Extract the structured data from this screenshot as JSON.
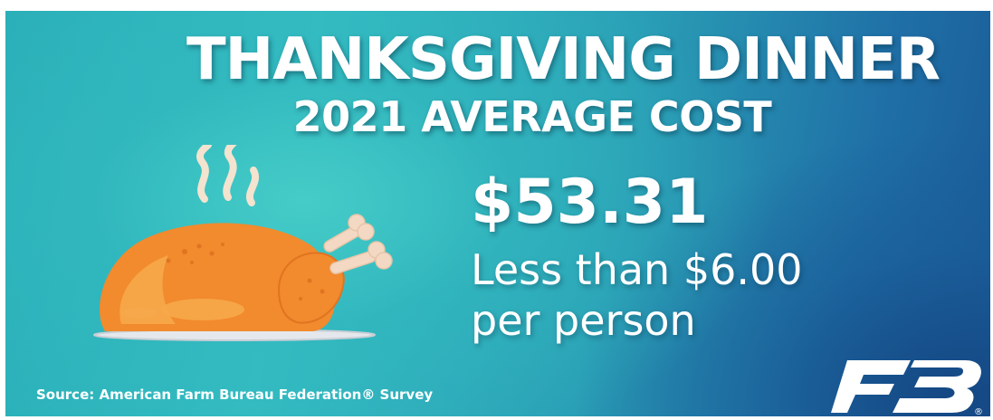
{
  "headline": {
    "line1": "THANKSGIVING DINNER",
    "line2": "2021 AVERAGE COST"
  },
  "cost": {
    "total": "$53.31",
    "per_person_line1": "Less than $6.00",
    "per_person_line2": "per person"
  },
  "source_text": "Source: American Farm Bureau Federation® Survey",
  "logo": {
    "name": "farm-bureau-logo",
    "mark": "FB",
    "registered": "®"
  },
  "illustration": {
    "icon": "roast-turkey-icon"
  },
  "colors": {
    "background_teal": "#33bcc2",
    "background_blue": "#1a5a97",
    "text": "#ffffff",
    "turkey_orange": "#f28a2e",
    "turkey_light": "#f6a94a",
    "bone": "#f3d9c4",
    "platter": "#dfe3e8"
  }
}
